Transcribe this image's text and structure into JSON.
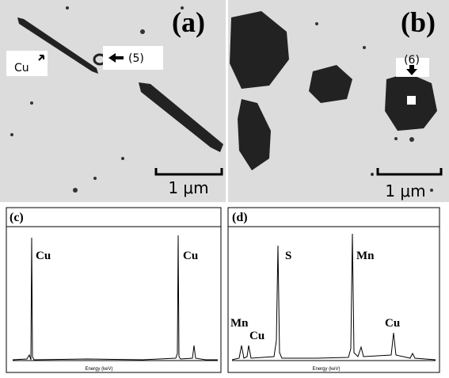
{
  "panels": [
    {
      "label": "(a)",
      "annotations": [
        "Cu",
        "(5)"
      ],
      "scale_bar": "1 μm"
    },
    {
      "label": "(b)",
      "annotations": [
        "(6)"
      ],
      "scale_bar": "1 μm"
    },
    {
      "label": "(c)",
      "peak_labels": [
        "Cu",
        "Cu"
      ],
      "x_label": "Energy (keV)"
    },
    {
      "label": "(d)",
      "peak_labels": [
        "Mn",
        "Cu",
        "S",
        "Mn",
        "Cu"
      ],
      "x_label": "Energy (keV)"
    }
  ]
}
